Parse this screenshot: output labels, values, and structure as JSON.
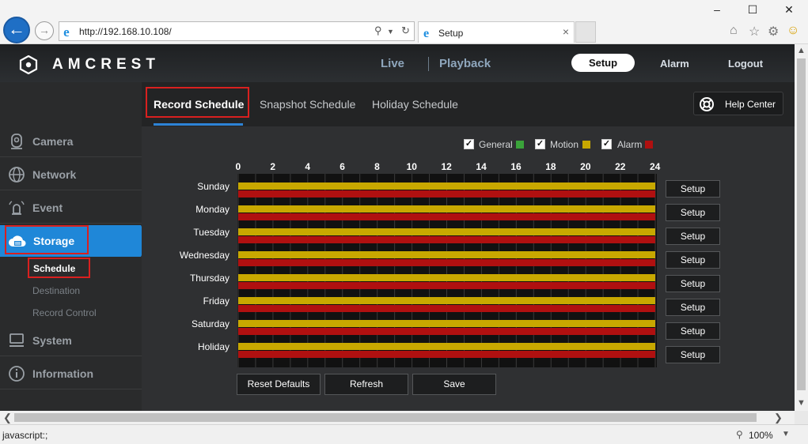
{
  "browser": {
    "url": "http://192.168.10.108/",
    "tab_title": "Setup",
    "status_text": "javascript:;",
    "zoom": "100%"
  },
  "header": {
    "brand": "AMCREST",
    "nav": {
      "live": "Live",
      "playback": "Playback",
      "setup": "Setup",
      "alarm": "Alarm",
      "logout": "Logout"
    }
  },
  "sidebar": {
    "items": [
      {
        "label": "Camera"
      },
      {
        "label": "Network"
      },
      {
        "label": "Event"
      },
      {
        "label": "Storage"
      },
      {
        "label": "System"
      },
      {
        "label": "Information"
      }
    ],
    "storage_sub": {
      "schedule": "Schedule",
      "destination": "Destination",
      "record_control": "Record Control"
    }
  },
  "main": {
    "tabs": {
      "record": "Record Schedule",
      "snapshot": "Snapshot Schedule",
      "holiday": "Holiday Schedule"
    },
    "help": "Help Center",
    "legend": {
      "general": "General",
      "motion": "Motion",
      "alarm": "Alarm"
    },
    "legend_colors": {
      "general": "#3aa33a",
      "motion": "#c8a800",
      "alarm": "#b01010"
    },
    "hours": [
      "0",
      "2",
      "4",
      "6",
      "8",
      "10",
      "12",
      "14",
      "16",
      "18",
      "20",
      "22",
      "24"
    ],
    "days": [
      "Sunday",
      "Monday",
      "Tuesday",
      "Wednesday",
      "Thursday",
      "Friday",
      "Saturday",
      "Holiday"
    ],
    "row_setup": "Setup",
    "actions": {
      "reset": "Reset Defaults",
      "refresh": "Refresh",
      "save": "Save"
    }
  }
}
